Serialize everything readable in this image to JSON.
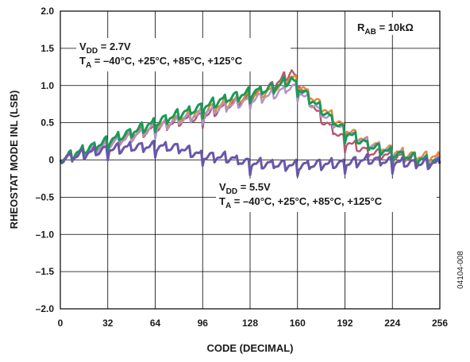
{
  "chart_data": {
    "type": "line",
    "xlabel": "CODE (DECIMAL)",
    "ylabel": "RHEOSTAT MODE INL (LSB)",
    "xlim": [
      0,
      256
    ],
    "ylim": [
      -2.0,
      2.0
    ],
    "x_ticks": [
      "0",
      "32",
      "64",
      "96",
      "128",
      "160",
      "192",
      "224",
      "256"
    ],
    "y_ticks": [
      "2.0",
      "1.5",
      "1.0",
      "0.5",
      "0",
      "–0.5",
      "–1.0",
      "–1.5",
      "–2.0"
    ],
    "grid": true,
    "figure_id": "04104-008",
    "annotations": {
      "rab": {
        "main": "R",
        "sub": "AB",
        "rest": " = 10kΩ"
      },
      "vdd_low": {
        "main": "V",
        "sub": "DD",
        "rest": " = 2.7V"
      },
      "ta_low": {
        "main": "T",
        "sub": "A",
        "rest": " = –40°C, +25°C, +85°C, +125°C"
      },
      "vdd_high": {
        "main": "V",
        "sub": "DD",
        "rest": " = 5.5V"
      },
      "ta_high": {
        "main": "T",
        "sub": "A",
        "rest": " = –40°C, +25°C, +85°C, +125°C"
      }
    },
    "series": [
      {
        "color": "#b5576e",
        "x": [
          0,
          16,
          32,
          48,
          64,
          80,
          96,
          112,
          128,
          144,
          156,
          160,
          176,
          192,
          208,
          224,
          240,
          256
        ],
        "y": [
          0,
          0.12,
          0.22,
          0.33,
          0.42,
          0.52,
          0.58,
          0.72,
          0.84,
          1.0,
          1.18,
          1.05,
          0.55,
          0.25,
          0.1,
          0.05,
          0.0,
          -0.03
        ]
      },
      {
        "color": "#e38b34",
        "x": [
          0,
          16,
          32,
          48,
          64,
          80,
          96,
          112,
          128,
          144,
          156,
          160,
          176,
          192,
          208,
          224,
          240,
          256
        ],
        "y": [
          0,
          0.11,
          0.21,
          0.32,
          0.45,
          0.55,
          0.65,
          0.76,
          0.85,
          0.94,
          1.12,
          1.03,
          0.72,
          0.42,
          0.22,
          0.12,
          0.05,
          0.03
        ]
      },
      {
        "color": "#b293c4",
        "x": [
          0,
          16,
          32,
          48,
          64,
          80,
          96,
          112,
          128,
          144,
          156,
          160,
          176,
          192,
          208,
          224,
          240,
          256
        ],
        "y": [
          0,
          0.1,
          0.2,
          0.31,
          0.43,
          0.53,
          0.62,
          0.72,
          0.8,
          0.88,
          0.98,
          0.93,
          0.63,
          0.38,
          0.22,
          0.1,
          0.02,
          -0.02
        ]
      },
      {
        "color": "#1a9a58",
        "x": [
          0,
          16,
          32,
          48,
          64,
          80,
          96,
          112,
          128,
          144,
          156,
          160,
          176,
          192,
          208,
          224,
          240,
          256
        ],
        "y": [
          0,
          0.13,
          0.25,
          0.37,
          0.5,
          0.61,
          0.71,
          0.82,
          0.9,
          0.97,
          1.08,
          0.98,
          0.68,
          0.38,
          0.19,
          0.09,
          0.02,
          -0.05
        ]
      },
      {
        "color": "#6957a8",
        "x": [
          0,
          16,
          32,
          48,
          64,
          80,
          96,
          112,
          128,
          144,
          160,
          176,
          192,
          208,
          224,
          240,
          256
        ],
        "y": [
          0,
          0.08,
          0.14,
          0.17,
          0.18,
          0.16,
          0.05,
          0.03,
          -0.05,
          -0.06,
          -0.08,
          -0.06,
          -0.05,
          0.0,
          -0.03,
          -0.05,
          -0.05
        ]
      }
    ]
  }
}
